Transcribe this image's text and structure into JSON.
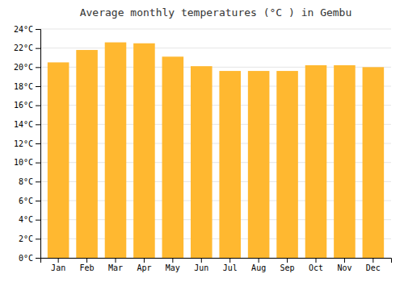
{
  "chart_data": {
    "type": "bar",
    "title": "Average monthly temperatures (°C ) in Gembu",
    "categories": [
      "Jan",
      "Feb",
      "Mar",
      "Apr",
      "May",
      "Jun",
      "Jul",
      "Aug",
      "Sep",
      "Oct",
      "Nov",
      "Dec"
    ],
    "values": [
      20.5,
      21.8,
      22.6,
      22.5,
      21.1,
      20.1,
      19.6,
      19.6,
      19.6,
      20.2,
      20.2,
      20.0
    ],
    "color": "#FFB830",
    "ylim": [
      0,
      24
    ],
    "yticks": [
      {
        "value": 0,
        "label": "0°C"
      },
      {
        "value": 2,
        "label": "2°C"
      },
      {
        "value": 4,
        "label": "4°C"
      },
      {
        "value": 6,
        "label": "6°C"
      },
      {
        "value": 8,
        "label": "8°C"
      },
      {
        "value": 10,
        "label": "10°C"
      },
      {
        "value": 12,
        "label": "12°C"
      },
      {
        "value": 14,
        "label": "14°C"
      },
      {
        "value": 16,
        "label": "16°C"
      },
      {
        "value": 18,
        "label": "18°C"
      },
      {
        "value": 20,
        "label": "20°C"
      },
      {
        "value": 22,
        "label": "22°C"
      },
      {
        "value": 24,
        "label": "24°C"
      }
    ],
    "grid": true
  }
}
